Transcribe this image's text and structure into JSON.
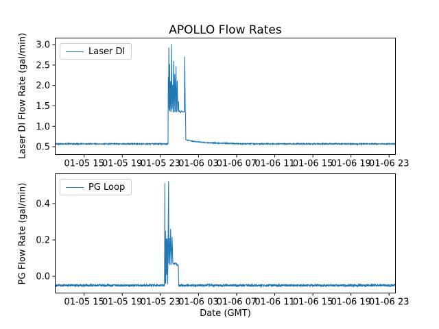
{
  "figure": {
    "title": "APOLLO Flow Rates",
    "xlabel": "Date (GMT)",
    "background": "#ffffff",
    "line_color": "#1f77b4",
    "text_color": "#000000",
    "spine_color": "#000000",
    "legend_border_color": "#cccccc"
  },
  "chart_data": [
    {
      "type": "line",
      "name": "laser-di",
      "title": "APOLLO Flow Rates",
      "ylabel": "Laser DI Flow Rate (gal/min)",
      "xlabel": "",
      "legend": "Laser DI",
      "legend_position": "upper left",
      "grid": false,
      "line_color": "#1f77b4",
      "ylim": [
        0.3,
        3.17
      ],
      "yticks": [
        0.5,
        1.0,
        1.5,
        2.0,
        2.5,
        3.0
      ],
      "ytick_labels": [
        "0.5",
        "1.0",
        "1.5",
        "2.0",
        "2.5",
        "3.0"
      ],
      "xlim_hours": [
        0,
        35.77
      ],
      "xtick_hours": [
        3.07,
        7.07,
        11.07,
        15.07,
        19.07,
        23.07,
        27.07,
        31.07,
        35.07
      ],
      "xtick_labels": [
        "01-05 15",
        "01-05 19",
        "01-05 23",
        "01-06 03",
        "01-06 07",
        "01-06 11",
        "01-06 15",
        "01-06 19",
        "01-06 23"
      ],
      "baseline": 0.57,
      "noise_amplitude": 0.013,
      "keypoints": [
        [
          11.87,
          0.57
        ],
        [
          11.9,
          2.2
        ],
        [
          11.92,
          1.45
        ],
        [
          11.96,
          2.93
        ],
        [
          11.99,
          1.4
        ],
        [
          12.04,
          2.52
        ],
        [
          12.08,
          1.36
        ],
        [
          12.14,
          2.1
        ],
        [
          12.19,
          1.35
        ],
        [
          12.25,
          3.02
        ],
        [
          12.29,
          1.42
        ],
        [
          12.35,
          2.02
        ],
        [
          12.41,
          1.35
        ],
        [
          12.47,
          2.6
        ],
        [
          12.52,
          1.34
        ],
        [
          12.58,
          2.28
        ],
        [
          12.64,
          1.35
        ],
        [
          12.71,
          2.47
        ],
        [
          12.77,
          1.35
        ],
        [
          12.84,
          2.12
        ],
        [
          12.9,
          1.36
        ],
        [
          12.97,
          1.62
        ],
        [
          13.02,
          1.35
        ],
        [
          13.1,
          1.38
        ],
        [
          13.2,
          1.34
        ],
        [
          13.3,
          1.37
        ],
        [
          13.4,
          1.35
        ],
        [
          13.5,
          1.36
        ],
        [
          13.58,
          1.35
        ],
        [
          13.63,
          2.7
        ],
        [
          13.68,
          1.35
        ],
        [
          13.71,
          1.34
        ],
        [
          13.74,
          0.68
        ],
        [
          13.9,
          0.655
        ],
        [
          14.3,
          0.64
        ],
        [
          15.0,
          0.62
        ],
        [
          16.0,
          0.6
        ],
        [
          17.5,
          0.585
        ],
        [
          19.0,
          0.575
        ],
        [
          21.0,
          0.57
        ]
      ]
    },
    {
      "type": "line",
      "name": "pg-loop",
      "title": "",
      "ylabel": "PG Flow Rate (gal/min)",
      "xlabel": "Date (GMT)",
      "legend": "PG Loop",
      "legend_position": "upper left",
      "grid": false,
      "line_color": "#1f77b4",
      "ylim": [
        -0.094,
        0.566
      ],
      "yticks": [
        0.0,
        0.2,
        0.4
      ],
      "ytick_labels": [
        "0.0",
        "0.2",
        "0.4"
      ],
      "xlim_hours": [
        0,
        35.77
      ],
      "xtick_hours": [
        3.07,
        7.07,
        11.07,
        15.07,
        19.07,
        23.07,
        27.07,
        31.07,
        35.07
      ],
      "xtick_labels": [
        "01-05 15",
        "01-05 19",
        "01-05 23",
        "01-06 03",
        "01-06 07",
        "01-06 11",
        "01-06 15",
        "01-06 19",
        "01-06 23"
      ],
      "baseline": -0.05,
      "noise_amplitude": 0.006,
      "keypoints": [
        [
          11.5,
          -0.05
        ],
        [
          11.54,
          0.51
        ],
        [
          11.56,
          -0.045
        ],
        [
          11.61,
          0.25
        ],
        [
          11.64,
          -0.04
        ],
        [
          11.7,
          0.21
        ],
        [
          11.74,
          0.01
        ],
        [
          11.79,
          0.205
        ],
        [
          11.84,
          -0.045
        ],
        [
          11.93,
          0.525
        ],
        [
          11.96,
          0.07
        ],
        [
          12.03,
          0.21
        ],
        [
          12.08,
          0.06
        ],
        [
          12.15,
          0.26
        ],
        [
          12.22,
          0.065
        ],
        [
          12.3,
          0.215
        ],
        [
          12.38,
          0.07
        ],
        [
          12.52,
          0.068
        ],
        [
          12.65,
          0.072
        ],
        [
          12.78,
          0.065
        ],
        [
          12.95,
          0.06
        ],
        [
          13.0,
          -0.05
        ]
      ]
    }
  ]
}
